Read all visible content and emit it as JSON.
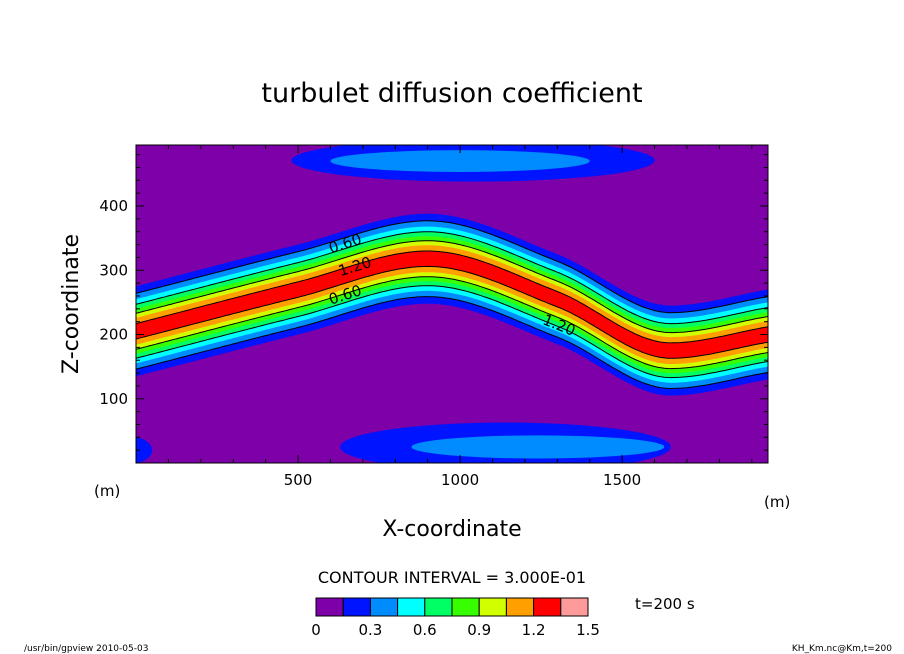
{
  "chart_data": {
    "type": "contour",
    "title": "turbulet diffusion coefficient",
    "xlabel": "X-coordinate",
    "ylabel": "Z-coordinate",
    "x_unit": "(m)",
    "y_unit": "(m)",
    "xlim": [
      0,
      1950
    ],
    "ylim": [
      0,
      495
    ],
    "x_ticks": [
      500,
      1000,
      1500
    ],
    "y_ticks": [
      100,
      200,
      300,
      400
    ],
    "x_tick_labels": [
      "500",
      "1000",
      "1500"
    ],
    "y_tick_labels": [
      "100",
      "200",
      "300",
      "400"
    ],
    "contour_interval_text": "CONTOUR INTERVAL = 3.000E-01",
    "time_label": "t=200 s",
    "contour_labels": [
      {
        "text": "0.60",
        "x": 650,
        "z": 342
      },
      {
        "text": "1.20",
        "x": 680,
        "z": 306
      },
      {
        "text": "0.60",
        "x": 650,
        "z": 262
      },
      {
        "text": "1.20",
        "x": 1300,
        "z": 215
      }
    ],
    "colorbar": {
      "levels": [
        0,
        0.15,
        0.3,
        0.45,
        0.6,
        0.75,
        0.9,
        1.05,
        1.2,
        1.35,
        1.5
      ],
      "colors": [
        "#7d00a8",
        "#0014ff",
        "#008cff",
        "#00ffff",
        "#00ff64",
        "#37ff00",
        "#d2ff00",
        "#ffa000",
        "#ff0000",
        "#ff9a9a"
      ],
      "tick_values": [
        "0",
        "0.3",
        "0.6",
        "0.9",
        "1.2",
        "1.5"
      ]
    },
    "band": {
      "centerline": [
        [
          0,
          205
        ],
        [
          500,
          270
        ],
        [
          900,
          318
        ],
        [
          1300,
          255
        ],
        [
          1650,
          175
        ],
        [
          1950,
          200
        ]
      ],
      "levels": [
        {
          "value": 0.15,
          "half_width": 70
        },
        {
          "value": 0.3,
          "half_width": 59
        },
        {
          "value": 0.45,
          "half_width": 50
        },
        {
          "value": 0.6,
          "half_width": 42
        },
        {
          "value": 0.75,
          "half_width": 35
        },
        {
          "value": 0.9,
          "half_width": 28
        },
        {
          "value": 1.05,
          "half_width": 21
        },
        {
          "value": 1.2,
          "half_width": 12
        }
      ]
    },
    "patches": [
      {
        "cx": 1040,
        "cz": 471,
        "rx": 560,
        "rz": 33,
        "value": 0.15
      },
      {
        "cx": 1000,
        "cz": 470,
        "rx": 400,
        "rz": 17,
        "value": 0.3
      },
      {
        "cx": 1140,
        "cz": 25,
        "rx": 510,
        "rz": 38,
        "value": 0.15
      },
      {
        "cx": 1240,
        "cz": 25,
        "rx": 390,
        "rz": 18,
        "value": 0.3
      },
      {
        "cx": -10,
        "cz": 20,
        "rx": 60,
        "rz": 20,
        "value": 0.15
      }
    ]
  },
  "footer": {
    "left": "/usr/bin/gpview  2010-05-03",
    "right": "KH_Km.nc@Km,t=200"
  }
}
